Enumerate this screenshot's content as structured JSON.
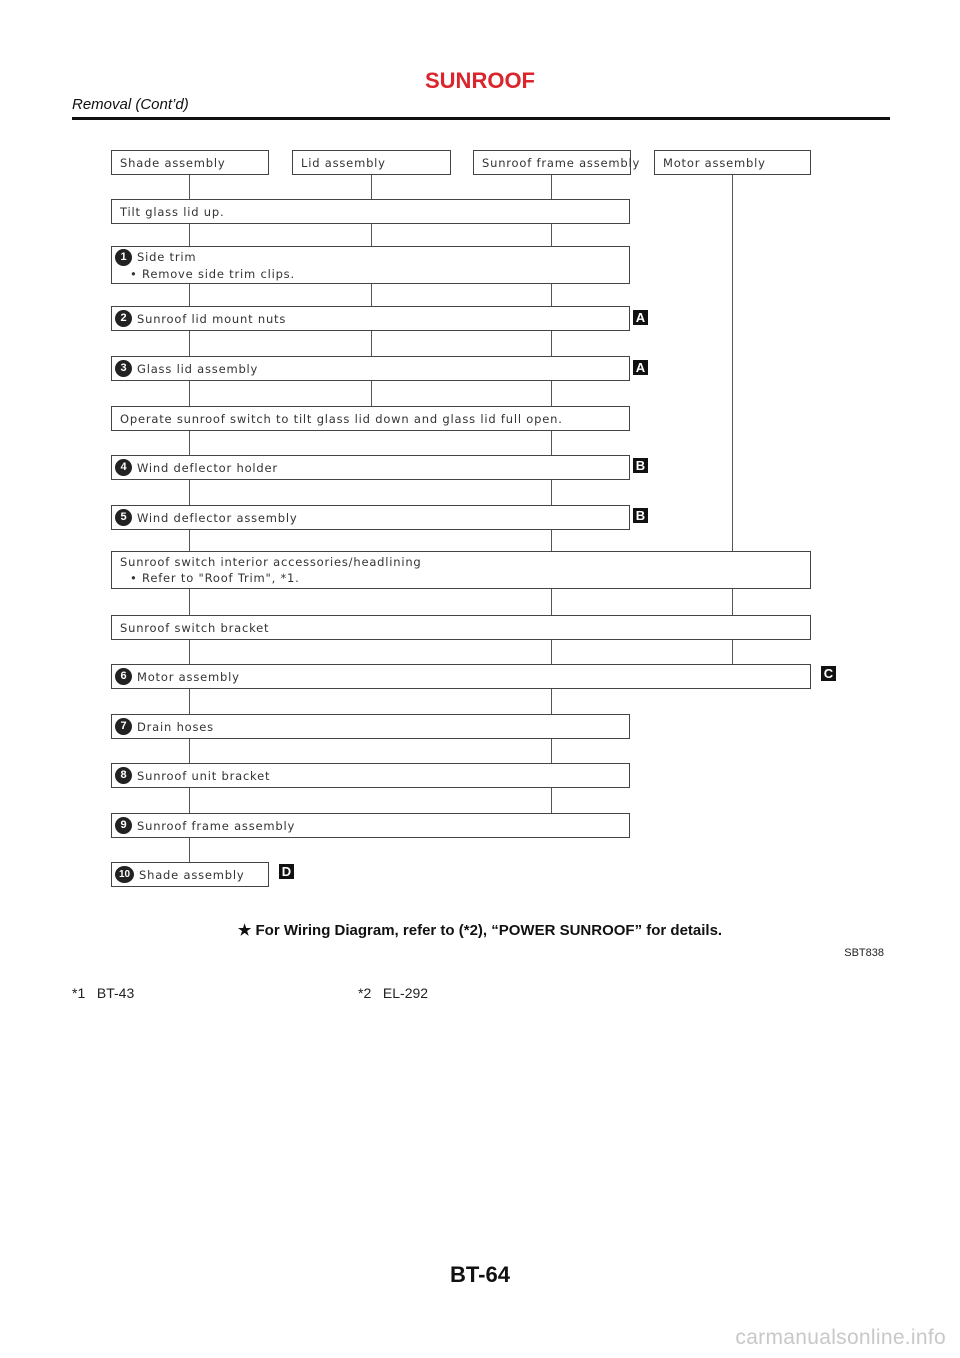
{
  "header": {
    "title": "SUNROOF",
    "subtitle": "Removal (Cont’d)"
  },
  "diagram": {
    "top_boxes": [
      "Shade assembly",
      "Lid assembly",
      "Sunroof frame assembly",
      "Motor assembly"
    ],
    "steps": [
      {
        "text": "Tilt glass lid up."
      },
      {
        "num": "1",
        "text": "Side trim",
        "sub": "• Remove side trim clips."
      },
      {
        "num": "2",
        "text": "Sunroof lid mount nuts",
        "marker": "A"
      },
      {
        "num": "3",
        "text": "Glass lid assembly",
        "marker": "A"
      },
      {
        "text": "Operate sunroof switch to tilt glass lid down and glass lid full open."
      },
      {
        "num": "4",
        "text": "Wind deflector holder",
        "marker": "B"
      },
      {
        "num": "5",
        "text": "Wind deflector assembly",
        "marker": "B"
      },
      {
        "text": "Sunroof switch interior accessories/headlining",
        "sub": "• Refer to \"Roof Trim\", *1."
      },
      {
        "text": "Sunroof switch bracket"
      },
      {
        "num": "6",
        "text": "Motor assembly",
        "marker": "C"
      },
      {
        "num": "7",
        "text": "Drain hoses"
      },
      {
        "num": "8",
        "text": "Sunroof unit bracket"
      },
      {
        "num": "9",
        "text": "Sunroof frame assembly"
      },
      {
        "num": "10",
        "text": "Shade assembly",
        "marker": "D"
      }
    ]
  },
  "note": {
    "star": "★",
    "text": "For Wiring Diagram, refer to (*2), “POWER SUNROOF” for details."
  },
  "figure_code": "SBT838",
  "references": [
    {
      "key": "*1",
      "value": "BT-43"
    },
    {
      "key": "*2",
      "value": "EL-292"
    }
  ],
  "page_number": "BT-64",
  "watermark": "carmanualsonline.info"
}
